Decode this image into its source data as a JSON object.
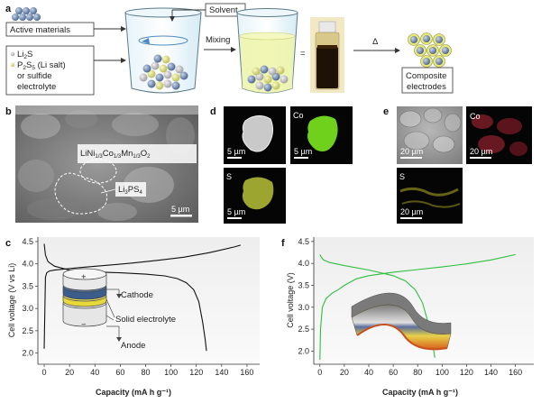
{
  "panel_a": {
    "label": "a",
    "active_materials": "Active materials",
    "solvent": "Solvent",
    "li2s": "Li",
    "li2s_sub": "2",
    "li2s_end": "S",
    "p2s5": "P",
    "p2s5_sub1": "2",
    "p2s5_mid": "S",
    "p2s5_sub2": "5",
    "p2s5_end": " (Li salt)",
    "or_sulfide": "or sulfide",
    "electrolyte": "electrolyte",
    "mixing": "Mixing",
    "equals": "=",
    "delta": "Δ",
    "composite": "Composite",
    "electrodes": "electrodes"
  },
  "panel_b": {
    "label": "b",
    "ncm_main": "LiNi",
    "ncm_s1": "1/3",
    "ncm_co": "Co",
    "ncm_s2": "1/3",
    "ncm_mn": "Mn",
    "ncm_s3": "1/3",
    "ncm_o": "O",
    "ncm_s4": "2",
    "lps_main": "Li",
    "lps_s1": "3",
    "lps_ps": "PS",
    "lps_s2": "4",
    "scale": "5 µm"
  },
  "panel_d": {
    "label": "d",
    "co": "Co",
    "s": "S",
    "scale": "5 µm",
    "color_co": "#6fd11c",
    "color_s": "#b8c23a"
  },
  "panel_e": {
    "label": "e",
    "co": "Co",
    "s": "S",
    "scale": "20 µm",
    "color_co": "#8a1f2a",
    "color_s": "#8f8a1e"
  },
  "panel_c": {
    "label": "c",
    "ylabel": "Cell voltage (V vs Li)",
    "xlabel": "Capacity (mA h g⁻¹)",
    "cathode": "Cathode",
    "solid_electrolyte": "Solid electrolyte",
    "anode": "Anode",
    "plus": "+",
    "minus": "−",
    "line_color": "#111111"
  },
  "panel_f": {
    "label": "f",
    "ylabel": "Cell voltage (V)",
    "xlabel": "Capacity (mA h g⁻¹)",
    "line_color": "#2fbf3f"
  },
  "chart_data": [
    {
      "type": "line",
      "panel": "c",
      "xlabel": "Capacity (mA h g⁻¹)",
      "ylabel": "Cell voltage (V vs Li)",
      "xlim": [
        -5,
        170
      ],
      "ylim": [
        1.75,
        4.6
      ],
      "xticks": [
        0,
        20,
        40,
        60,
        80,
        100,
        120,
        140,
        160
      ],
      "yticks": [
        2.0,
        2.5,
        3.0,
        3.5,
        4.0,
        4.5
      ],
      "grid": false,
      "series": [
        {
          "x": [
            0,
            1,
            2,
            4,
            8,
            15,
            30,
            50,
            70,
            90,
            110,
            130,
            150,
            155
          ],
          "y": [
            2.1,
            3.7,
            3.8,
            3.84,
            3.86,
            3.88,
            3.92,
            3.97,
            4.02,
            4.08,
            4.15,
            4.25,
            4.38,
            4.42
          ]
        },
        {
          "x": [
            0,
            1,
            3,
            8,
            20,
            40,
            60,
            80,
            95,
            105,
            112,
            118,
            122,
            125,
            127,
            128
          ],
          "y": [
            4.45,
            4.2,
            4.05,
            3.95,
            3.86,
            3.82,
            3.8,
            3.77,
            3.73,
            3.67,
            3.58,
            3.42,
            3.15,
            2.7,
            2.3,
            2.05
          ]
        }
      ]
    },
    {
      "type": "line",
      "panel": "f",
      "xlabel": "Capacity (mA h g⁻¹)",
      "ylabel": "Cell voltage (V)",
      "xlim": [
        -5,
        175
      ],
      "ylim": [
        1.7,
        4.6
      ],
      "xticks": [
        0,
        20,
        40,
        60,
        80,
        100,
        120,
        140,
        160
      ],
      "yticks": [
        2.0,
        2.5,
        3.0,
        3.5,
        4.0,
        4.5
      ],
      "grid": false,
      "series": [
        {
          "x": [
            0,
            0.5,
            2,
            5,
            10,
            15,
            20,
            30,
            40,
            60,
            80,
            100,
            120,
            140,
            160
          ],
          "y": [
            1.8,
            2.5,
            3.0,
            3.2,
            3.32,
            3.4,
            3.5,
            3.65,
            3.72,
            3.8,
            3.86,
            3.92,
            3.99,
            4.08,
            4.2
          ]
        },
        {
          "x": [
            0,
            1,
            3,
            8,
            20,
            40,
            60,
            70,
            78,
            84,
            88,
            91,
            93,
            94
          ],
          "y": [
            4.2,
            4.15,
            4.08,
            4.02,
            3.95,
            3.85,
            3.72,
            3.6,
            3.4,
            3.1,
            2.7,
            2.3,
            2.05,
            1.85
          ]
        }
      ]
    }
  ]
}
